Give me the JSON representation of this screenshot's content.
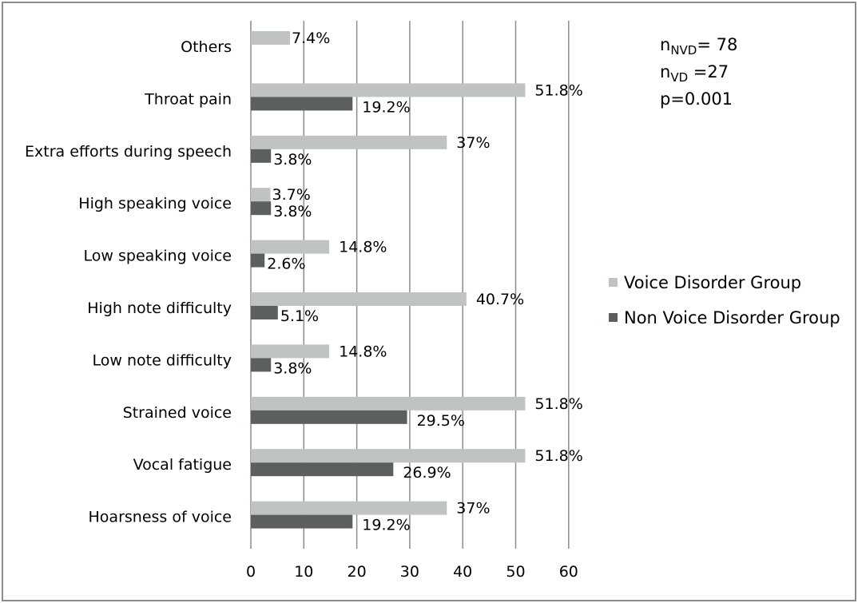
{
  "chart_data": {
    "type": "bar",
    "orientation": "horizontal",
    "categories": [
      "Others",
      "Throat pain",
      "Extra efforts during speech",
      "High speaking voice",
      "Low speaking voice",
      "High note difficulty",
      "Low note difficulty",
      "Strained voice",
      "Vocal fatigue",
      "Hoarsness of voice"
    ],
    "series": [
      {
        "name": "Voice Disorder Group",
        "color": "#bfc3c3",
        "values": [
          7.4,
          51.8,
          37,
          3.7,
          14.8,
          40.7,
          14.8,
          51.8,
          51.8,
          37
        ],
        "labels": [
          "7.4%",
          "51.8%",
          "37%",
          "3.7%",
          "14.8%",
          "40.7%",
          "14.8%",
          "51.8%",
          "51.8%",
          "37%"
        ]
      },
      {
        "name": "Non Voice Disorder Group",
        "color": "#5b605f",
        "values": [
          null,
          19.2,
          3.8,
          3.8,
          2.6,
          5.1,
          3.8,
          29.5,
          26.9,
          19.2
        ],
        "labels": [
          null,
          "19.2%",
          "3.8%",
          "3.8%",
          "2.6%",
          "5.1%",
          "3.8%",
          "29.5%",
          "26.9%",
          "19.2%"
        ]
      }
    ],
    "xlim": [
      0,
      60
    ],
    "xticks": [
      "0",
      "10",
      "20",
      "30",
      "40",
      "50",
      "60"
    ],
    "grid": true,
    "gridline_color": "#8c8c8c",
    "legend_position": "right",
    "title": "",
    "xlabel": "",
    "ylabel": ""
  },
  "annotation": {
    "n_nvd_prefix": "n",
    "n_nvd_sub": "NVD",
    "n_nvd_value": "= 78",
    "n_vd_prefix": "n",
    "n_vd_sub": "VD",
    "n_vd_value": " =27",
    "p_value": "p=0.001"
  }
}
